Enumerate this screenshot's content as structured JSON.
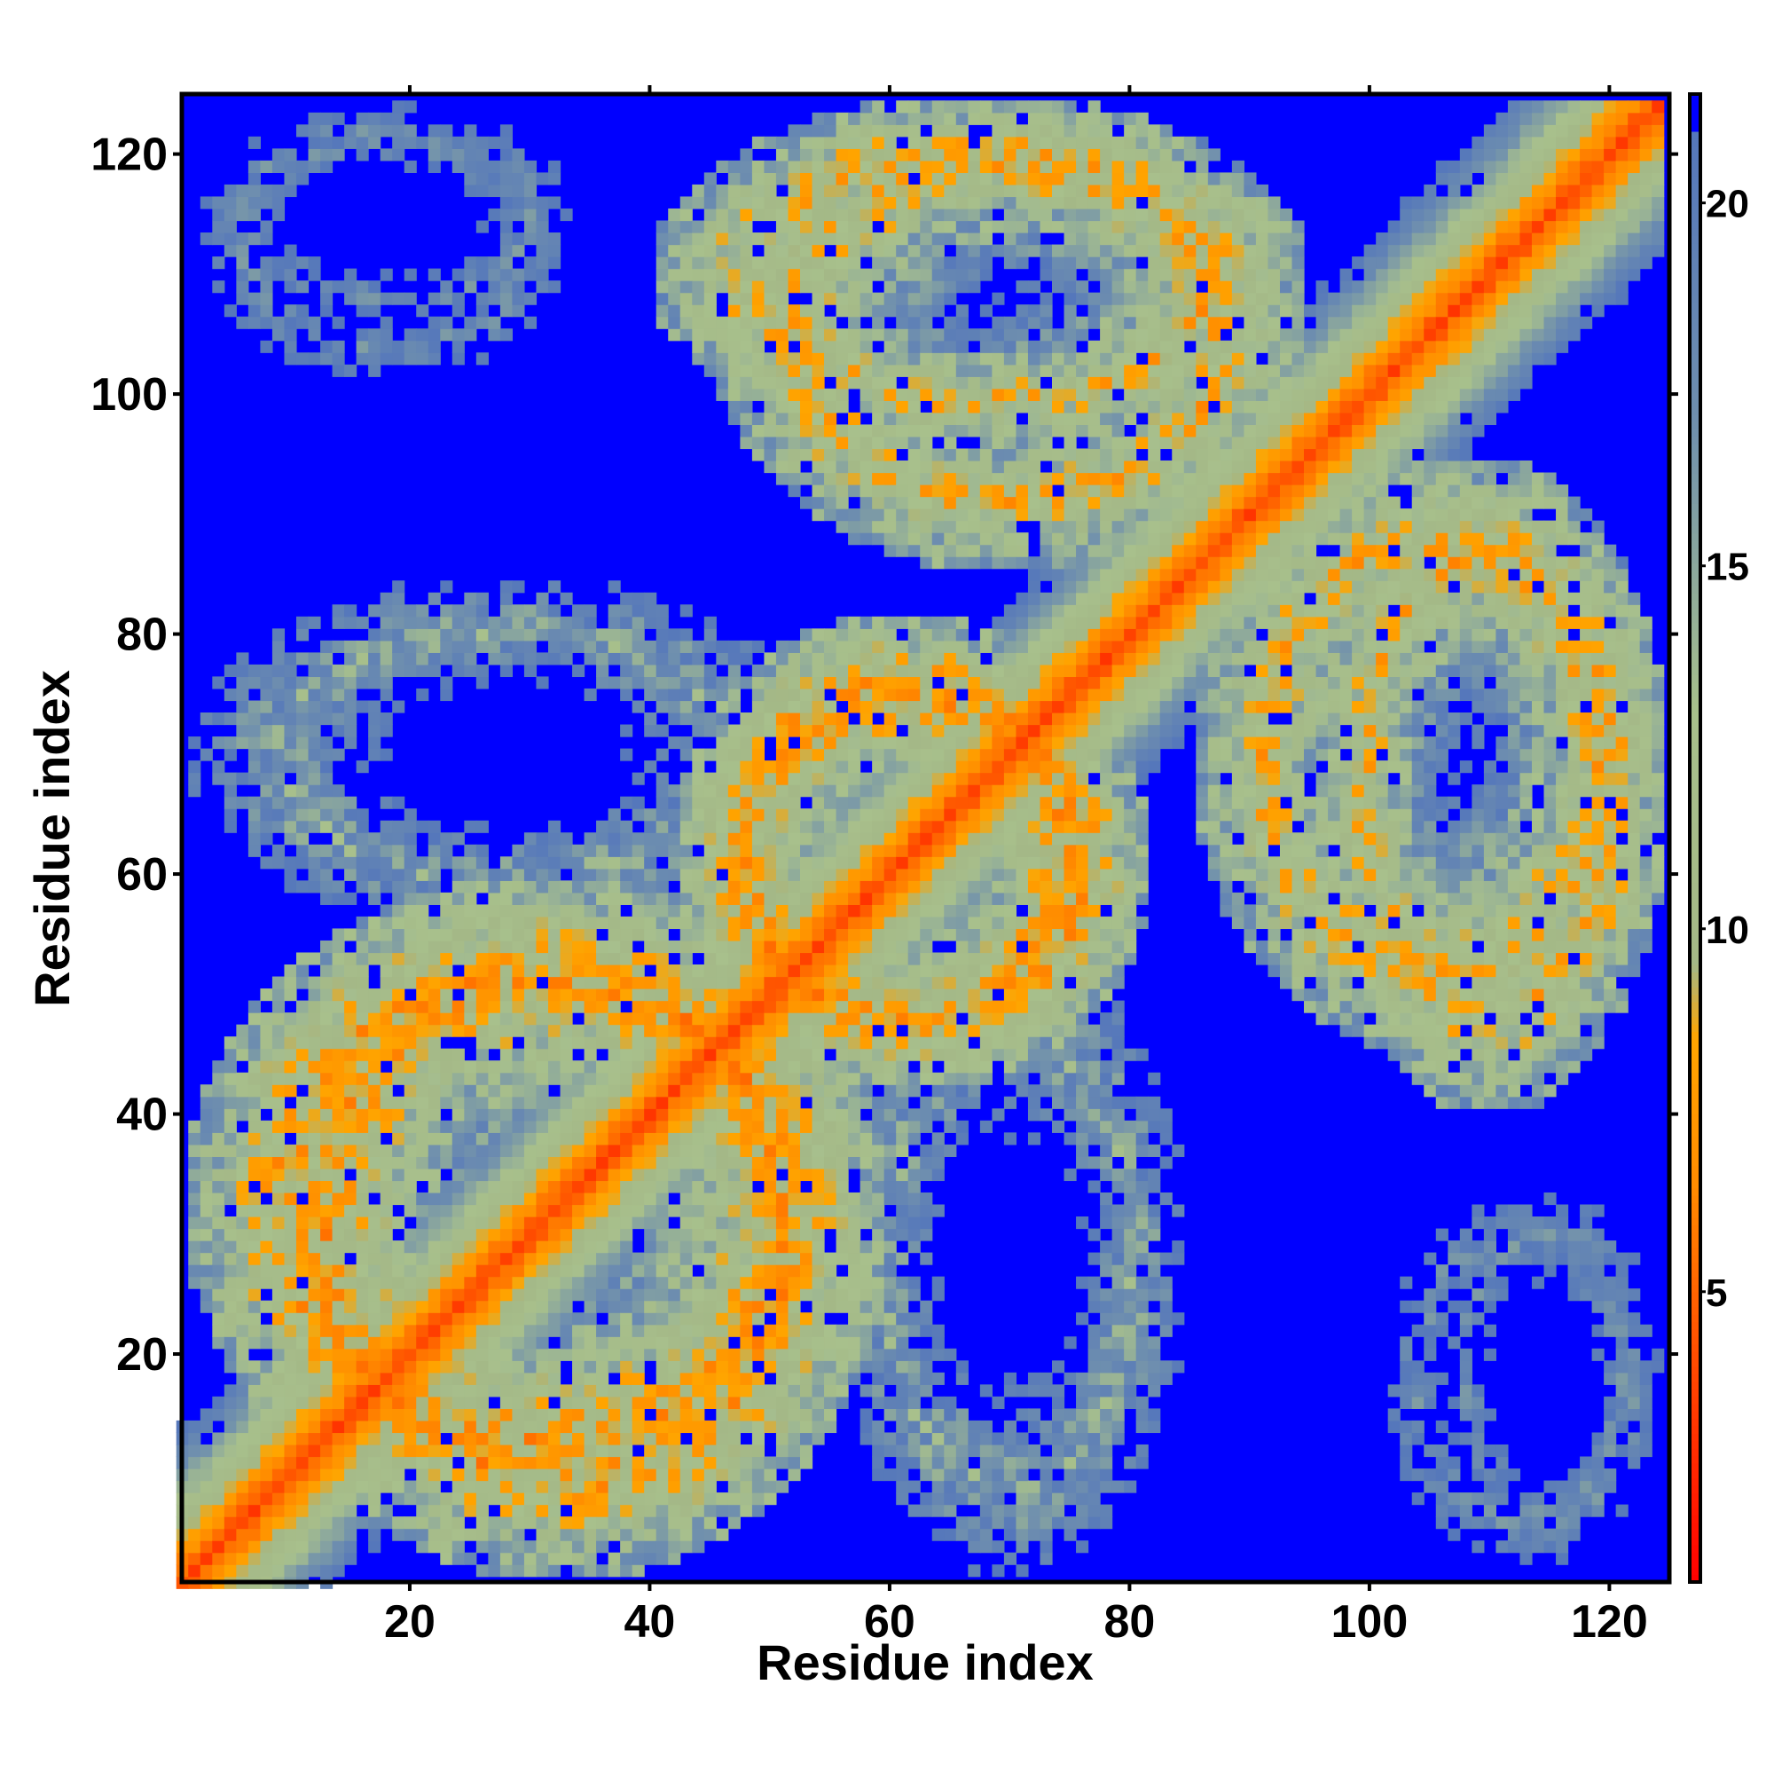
{
  "chart_data": {
    "type": "heatmap",
    "title": "",
    "xlabel": "Residue index",
    "ylabel": "Residue index",
    "xlim": [
      1,
      125
    ],
    "ylim": [
      1,
      125
    ],
    "x_ticks": [
      20,
      40,
      60,
      80,
      100,
      120
    ],
    "y_ticks": [
      20,
      40,
      60,
      80,
      100,
      120
    ],
    "x_tick_labels": [
      "20",
      "40",
      "60",
      "80",
      "100",
      "120"
    ],
    "y_tick_labels": [
      "20",
      "40",
      "60",
      "80",
      "100",
      "120"
    ],
    "n_residues": 124,
    "grid": false,
    "colorbar": {
      "placement": "right",
      "range": [
        1,
        21.5
      ],
      "ticks": [
        5,
        10,
        15,
        20
      ],
      "tick_labels": [
        "5",
        "10",
        "15",
        "20"
      ],
      "stops": [
        {
          "value": 1,
          "color": "#ff0000"
        },
        {
          "value": 4,
          "color": "#ff4a00"
        },
        {
          "value": 6.5,
          "color": "#ff8c00"
        },
        {
          "value": 8.5,
          "color": "#ffa500"
        },
        {
          "value": 9.5,
          "color": "#a4b887"
        },
        {
          "value": 13,
          "color": "#a8c08c"
        },
        {
          "value": 17,
          "color": "#6f8fae"
        },
        {
          "value": 21,
          "color": "#5577bb"
        },
        {
          "value": 21.01,
          "color": "#0000ff"
        },
        {
          "value": 21.5,
          "color": "#0000ff"
        }
      ]
    },
    "cutoff": 21,
    "diagonal_band": {
      "description": "distance rises with |i-j| along main diagonal"
    },
    "off_diagonal_blobs": [
      {
        "x": [
          5,
          60
        ],
        "y": [
          1,
          60
        ],
        "min_dist": 5
      },
      {
        "x": [
          42,
          80
        ],
        "y": [
          42,
          82
        ],
        "min_dist": 5
      },
      {
        "x": [
          45,
          95
        ],
        "y": [
          85,
          125
        ],
        "min_dist": 6
      },
      {
        "x": [
          95,
          125
        ],
        "y": [
          40,
          95
        ],
        "min_dist": 6
      },
      {
        "x": [
          1,
          35
        ],
        "y": [
          105,
          125
        ],
        "min_dist": 15
      },
      {
        "x": [
          100,
          125
        ],
        "y": [
          1,
          35
        ],
        "min_dist": 15
      },
      {
        "x": [
          1,
          55
        ],
        "y": [
          55,
          85
        ],
        "min_dist": 12
      }
    ]
  }
}
